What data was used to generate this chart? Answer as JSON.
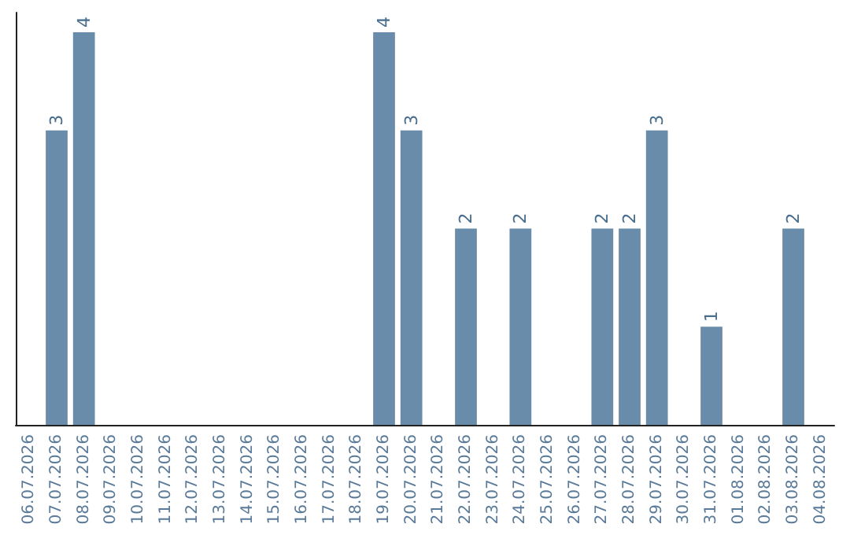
{
  "chart_data": {
    "type": "bar",
    "categories": [
      "06.07.2026",
      "07.07.2026",
      "08.07.2026",
      "09.07.2026",
      "10.07.2026",
      "11.07.2026",
      "12.07.2026",
      "13.07.2026",
      "14.07.2026",
      "15.07.2026",
      "16.07.2026",
      "17.07.2026",
      "18.07.2026",
      "19.07.2026",
      "20.07.2026",
      "21.07.2026",
      "22.07.2026",
      "23.07.2026",
      "24.07.2026",
      "25.07.2026",
      "26.07.2026",
      "27.07.2026",
      "28.07.2026",
      "29.07.2026",
      "30.07.2026",
      "31.07.2026",
      "01.08.2026",
      "02.08.2026",
      "03.08.2026",
      "04.08.2026"
    ],
    "values": [
      null,
      3,
      4,
      null,
      null,
      null,
      null,
      null,
      null,
      null,
      null,
      null,
      null,
      4,
      3,
      null,
      2,
      null,
      2,
      null,
      null,
      2,
      2,
      3,
      null,
      1,
      null,
      null,
      2,
      null
    ],
    "color": "#6a8cab",
    "data_labels": true
  }
}
